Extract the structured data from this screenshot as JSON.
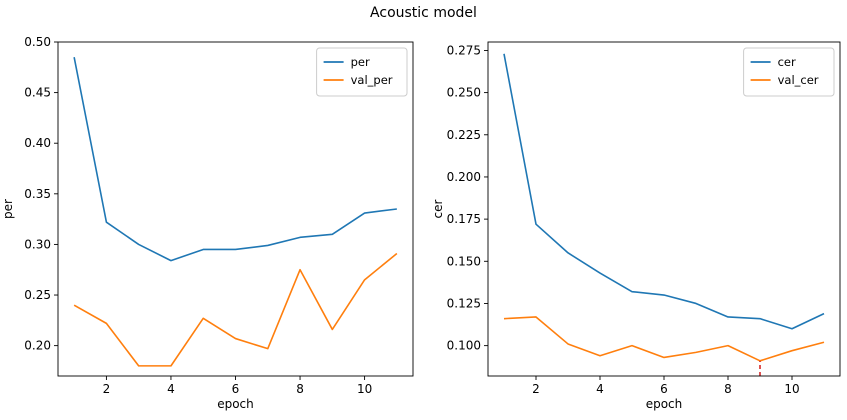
{
  "figure": {
    "title": "Acoustic model"
  },
  "chart_data": [
    {
      "type": "line",
      "xlabel": "epoch",
      "ylabel": "per",
      "xlim": [
        0.5,
        11.5
      ],
      "ylim": [
        0.17,
        0.5
      ],
      "x_ticks": [
        2,
        4,
        6,
        8,
        10
      ],
      "x_tick_labels": [
        "2",
        "4",
        "6",
        "8",
        "10"
      ],
      "y_ticks": [
        0.2,
        0.25,
        0.3,
        0.35,
        0.4,
        0.45,
        0.5
      ],
      "y_tick_labels": [
        "0.20",
        "0.25",
        "0.30",
        "0.35",
        "0.40",
        "0.45",
        "0.50"
      ],
      "grid": false,
      "legend_position": "top-right",
      "x": [
        1,
        2,
        3,
        4,
        5,
        6,
        7,
        8,
        9,
        10,
        11
      ],
      "series": [
        {
          "name": "per",
          "color": "#1f77b4",
          "values": [
            0.485,
            0.322,
            0.3,
            0.284,
            0.295,
            0.295,
            0.299,
            0.307,
            0.31,
            0.331,
            0.335
          ]
        },
        {
          "name": "val_per",
          "color": "#ff7f0e",
          "values": [
            0.24,
            0.222,
            0.18,
            0.18,
            0.227,
            0.207,
            0.197,
            0.275,
            0.216,
            0.265,
            0.291
          ]
        }
      ]
    },
    {
      "type": "line",
      "xlabel": "epoch",
      "ylabel": "cer",
      "xlim": [
        0.5,
        11.5
      ],
      "ylim": [
        0.082,
        0.28
      ],
      "x_ticks": [
        2,
        4,
        6,
        8,
        10
      ],
      "x_tick_labels": [
        "2",
        "4",
        "6",
        "8",
        "10"
      ],
      "y_ticks": [
        0.1,
        0.125,
        0.15,
        0.175,
        0.2,
        0.225,
        0.25,
        0.275
      ],
      "y_tick_labels": [
        "0.100",
        "0.125",
        "0.150",
        "0.175",
        "0.200",
        "0.225",
        "0.250",
        "0.275"
      ],
      "grid": false,
      "legend_position": "top-right",
      "x": [
        1,
        2,
        3,
        4,
        5,
        6,
        7,
        8,
        9,
        10,
        11
      ],
      "series": [
        {
          "name": "cer",
          "color": "#1f77b4",
          "values": [
            0.273,
            0.172,
            0.155,
            0.143,
            0.132,
            0.13,
            0.125,
            0.117,
            0.116,
            0.11,
            0.119
          ]
        },
        {
          "name": "val_cer",
          "color": "#ff7f0e",
          "values": [
            0.116,
            0.117,
            0.101,
            0.094,
            0.1,
            0.093,
            0.096,
            0.1,
            0.091,
            0.097,
            0.102
          ]
        }
      ],
      "marker_line": {
        "x": 9,
        "y_from": 0.082,
        "y_to": 0.091,
        "color": "#d62728",
        "style": "dashed"
      }
    }
  ]
}
